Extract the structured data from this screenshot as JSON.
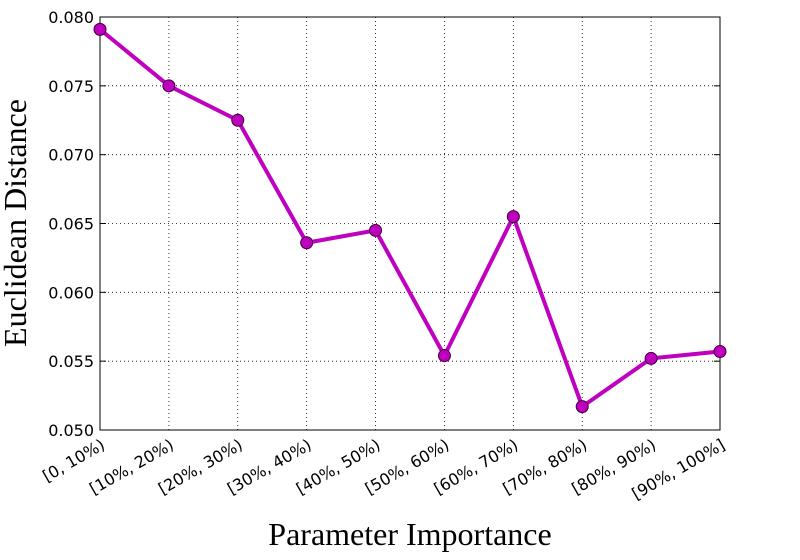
{
  "chart_data": {
    "type": "line",
    "xlabel": "Parameter Importance",
    "ylabel": "Euclidean Distance",
    "categories": [
      "[0, 10%)",
      "[10%, 20%)",
      "[20%, 30%)",
      "[30%, 40%)",
      "[40%, 50%)",
      "[50%, 60%)",
      "[60%, 70%)",
      "[70%, 80%)",
      "[80%, 90%)",
      "[90%, 100%]"
    ],
    "series": [
      {
        "name": "Euclidean Distance",
        "color": "#bf00bf",
        "values": [
          0.0791,
          0.075,
          0.0725,
          0.0636,
          0.0645,
          0.0554,
          0.0655,
          0.0517,
          0.0552,
          0.0557
        ]
      }
    ],
    "ylim": [
      0.05,
      0.08
    ],
    "yticks": [
      {
        "value": 0.05,
        "label": "0.050"
      },
      {
        "value": 0.055,
        "label": "0.055"
      },
      {
        "value": 0.06,
        "label": "0.060"
      },
      {
        "value": 0.065,
        "label": "0.065"
      },
      {
        "value": 0.07,
        "label": "0.070"
      },
      {
        "value": 0.075,
        "label": "0.075"
      },
      {
        "value": 0.08,
        "label": "0.080"
      }
    ],
    "grid": true
  }
}
